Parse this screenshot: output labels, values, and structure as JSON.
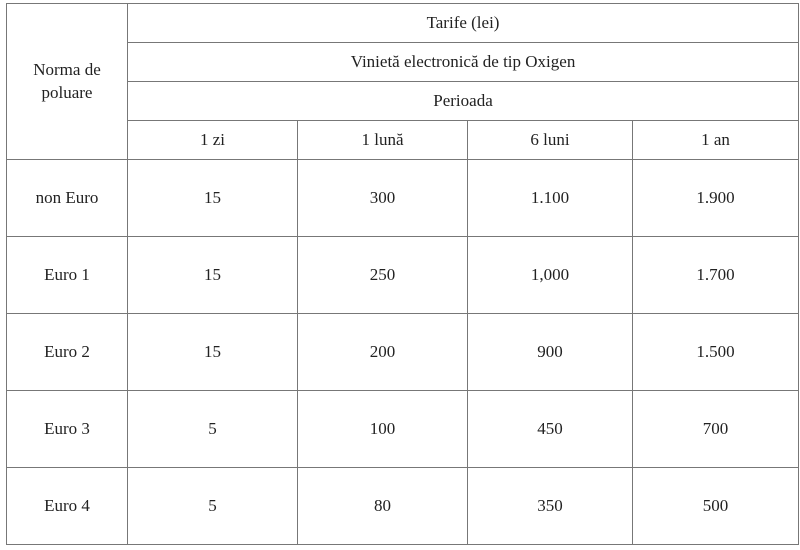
{
  "table": {
    "row_header": "Norma de poluare",
    "title": "Tarife (lei)",
    "subtitle": "Vinietă electronică de tip Oxigen",
    "period_label": "Perioada",
    "periods": [
      "1 zi",
      "1 lună",
      "6 luni",
      "1 an"
    ],
    "rows": [
      {
        "norm": "non Euro",
        "values": [
          "15",
          "300",
          "1.100",
          "1.900"
        ]
      },
      {
        "norm": "Euro 1",
        "values": [
          "15",
          "250",
          "1,000",
          "1.700"
        ]
      },
      {
        "norm": "Euro 2",
        "values": [
          "15",
          "200",
          "900",
          "1.500"
        ]
      },
      {
        "norm": "Euro 3",
        "values": [
          "5",
          "100",
          "450",
          "700"
        ]
      },
      {
        "norm": "Euro 4",
        "values": [
          "5",
          "80",
          "350",
          "500"
        ]
      }
    ]
  }
}
